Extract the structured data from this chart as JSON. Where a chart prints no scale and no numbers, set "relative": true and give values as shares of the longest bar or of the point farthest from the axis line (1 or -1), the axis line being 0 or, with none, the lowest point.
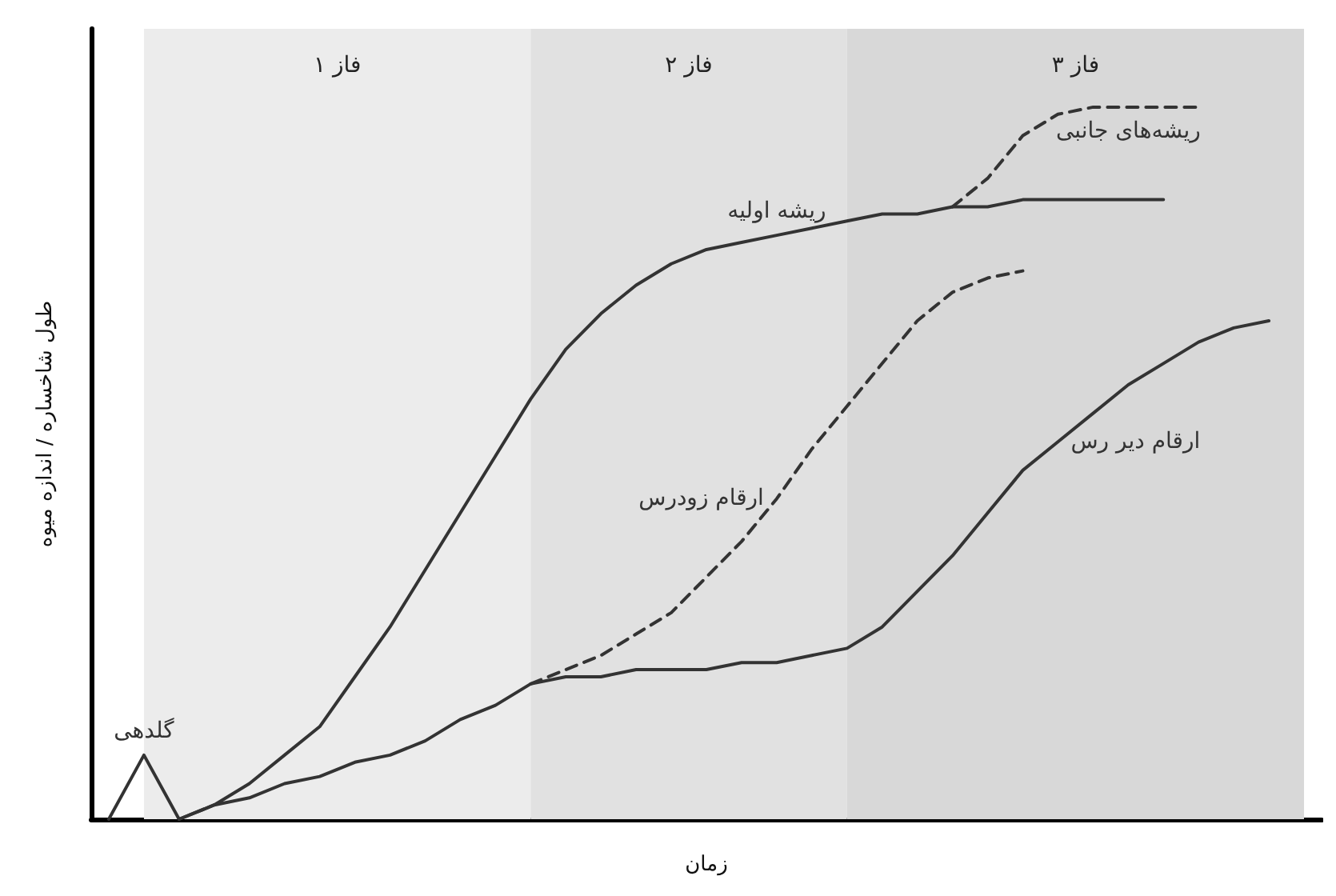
{
  "chart_data": {
    "type": "line",
    "relative": true,
    "xlabel": "زمان",
    "ylabel": "طول شاخساره / اندازه میوه",
    "grid": false,
    "marker": "none",
    "categories": [
      null,
      null,
      null,
      null,
      null,
      null,
      null,
      null,
      null,
      null,
      null,
      null,
      null,
      null,
      null,
      null,
      null,
      null,
      null,
      null,
      null,
      null,
      null,
      null,
      null,
      null,
      null,
      null,
      null,
      null,
      null,
      null,
      null,
      null,
      null
    ],
    "series": [
      {
        "name": "گلدهی",
        "color": "#333333",
        "line_style": "solid",
        "values": [
          0,
          0.09,
          0,
          null,
          null,
          null,
          null,
          null,
          null,
          null,
          null,
          null,
          null,
          null,
          null,
          null,
          null,
          null,
          null,
          null,
          null,
          null,
          null,
          null,
          null,
          null,
          null,
          null,
          null,
          null,
          null,
          null,
          null,
          null,
          null
        ]
      },
      {
        "name": "ریشه اولیه",
        "color": "#333333",
        "line_style": "solid",
        "values": [
          null,
          null,
          0,
          0.02,
          0.05,
          0.09,
          0.13,
          0.2,
          0.27,
          0.35,
          0.43,
          0.51,
          0.59,
          0.66,
          0.71,
          0.75,
          0.78,
          0.8,
          0.81,
          0.82,
          0.83,
          0.84,
          0.85,
          0.85,
          0.86,
          0.86,
          0.87,
          0.87,
          0.87,
          0.87,
          0.87,
          null,
          null,
          null,
          null
        ]
      },
      {
        "name": "ریشه‌های جانبی",
        "color": "#333333",
        "line_style": "dashed",
        "values": [
          null,
          null,
          null,
          null,
          null,
          null,
          null,
          null,
          null,
          null,
          null,
          null,
          null,
          null,
          null,
          null,
          null,
          null,
          null,
          null,
          null,
          null,
          null,
          null,
          0.86,
          0.9,
          0.96,
          0.99,
          1,
          1,
          1,
          1,
          null,
          null,
          null
        ]
      },
      {
        "name": "ارقام زودرس",
        "color": "#333333",
        "line_style": "dashed",
        "values": [
          null,
          null,
          null,
          null,
          null,
          null,
          null,
          null,
          null,
          null,
          null,
          null,
          0.19,
          0.21,
          0.23,
          0.26,
          0.29,
          0.34,
          0.39,
          0.45,
          0.52,
          0.58,
          0.64,
          0.7,
          0.74,
          0.76,
          0.77,
          null,
          null,
          null,
          null,
          null,
          null,
          null,
          null
        ]
      },
      {
        "name": "ارقام دیر رس",
        "color": "#333333",
        "line_style": "solid",
        "values": [
          null,
          null,
          0,
          0.02,
          0.03,
          0.05,
          0.06,
          0.08,
          0.09,
          0.11,
          0.14,
          0.16,
          0.19,
          0.2,
          0.2,
          0.21,
          0.21,
          0.21,
          0.22,
          0.22,
          0.23,
          0.24,
          0.27,
          0.32,
          0.37,
          0.43,
          0.49,
          0.53,
          0.57,
          0.61,
          0.64,
          0.67,
          0.69,
          0.7,
          null
        ]
      }
    ],
    "annotations": [
      "فاز ۱",
      "فاز ۲",
      "فاز ۳"
    ]
  }
}
